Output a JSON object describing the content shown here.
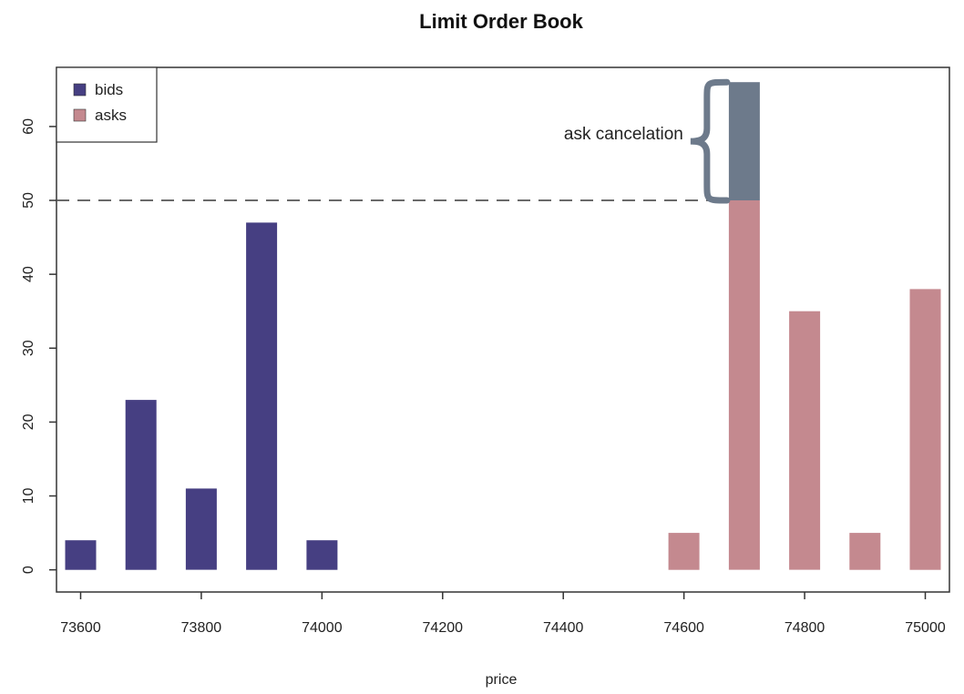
{
  "chart_data": {
    "type": "bar",
    "title": "Limit Order Book",
    "xlabel": "price",
    "ylabel": "",
    "xlim": [
      73560,
      75040
    ],
    "ylim": [
      -3,
      68
    ],
    "xticks": [
      73600,
      73800,
      74000,
      74200,
      74400,
      74600,
      74800,
      75000
    ],
    "yticks": [
      0,
      10,
      20,
      30,
      40,
      50,
      60
    ],
    "series": [
      {
        "name": "bids",
        "color": "#463f82",
        "x": [
          73600,
          73700,
          73800,
          73900,
          74000
        ],
        "values": [
          4,
          23,
          11,
          47,
          4
        ]
      },
      {
        "name": "asks",
        "color": "#c4898f",
        "x": [
          74600,
          74700,
          74800,
          74900,
          75000
        ],
        "values": [
          5,
          50,
          35,
          5,
          38
        ]
      }
    ],
    "cancelation": {
      "x": 74700,
      "from": 50,
      "to": 66,
      "color": "#6d7a8b",
      "label": "ask cancelation"
    },
    "reference_line": {
      "y": 50,
      "style": "dashed"
    },
    "legend": {
      "position": "top-left",
      "entries": [
        "bids",
        "asks"
      ]
    },
    "grid": false
  }
}
